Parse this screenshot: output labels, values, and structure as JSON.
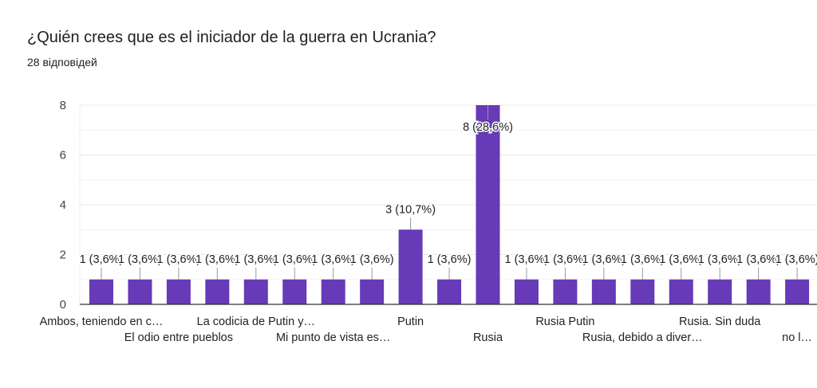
{
  "header": {
    "title": "¿Quién crees que es el iniciador de la guerra en Ucrania?",
    "responses": "28 відповідей"
  },
  "chart_data": {
    "type": "bar",
    "title": "",
    "xlabel": "",
    "ylabel": "",
    "ylim": [
      0,
      8
    ],
    "yticks": [
      "0",
      "2",
      "4",
      "6",
      "8"
    ],
    "grid": true,
    "bar_color": "#673ab7",
    "categories": [
      "Ambos, teniendo en c…",
      "",
      "El odio entre pueblos",
      "",
      "La codicia de Putin y…",
      "",
      "Mi punto de vista es…",
      "",
      "Putin",
      "",
      "Rusia",
      "",
      "Rusia Putin",
      "",
      "Rusia, debido a diver…",
      "",
      "Rusia. Sin duda",
      "",
      "no l…"
    ],
    "values": [
      1,
      1,
      1,
      1,
      1,
      1,
      1,
      1,
      3,
      1,
      8,
      1,
      1,
      1,
      1,
      1,
      1,
      1,
      1
    ],
    "data_labels": [
      "1 (3,6%)",
      "1 (3,6%)",
      "1 (3,6%)",
      "1 (3,6%)",
      "1 (3,6%)",
      "1 (3,6%)",
      "1 (3,6%)",
      "1 (3,6%)",
      "3 (10,7%)",
      "1 (3,6%)",
      "8 (28,6%)",
      "1 (3,6%)",
      "1 (3,6%)",
      "1 (3,6%)",
      "1 (3,6%)",
      "1 (3,6%)",
      "1 (3,6%)",
      "1 (3,6%)",
      "1 (3,6%)"
    ]
  }
}
